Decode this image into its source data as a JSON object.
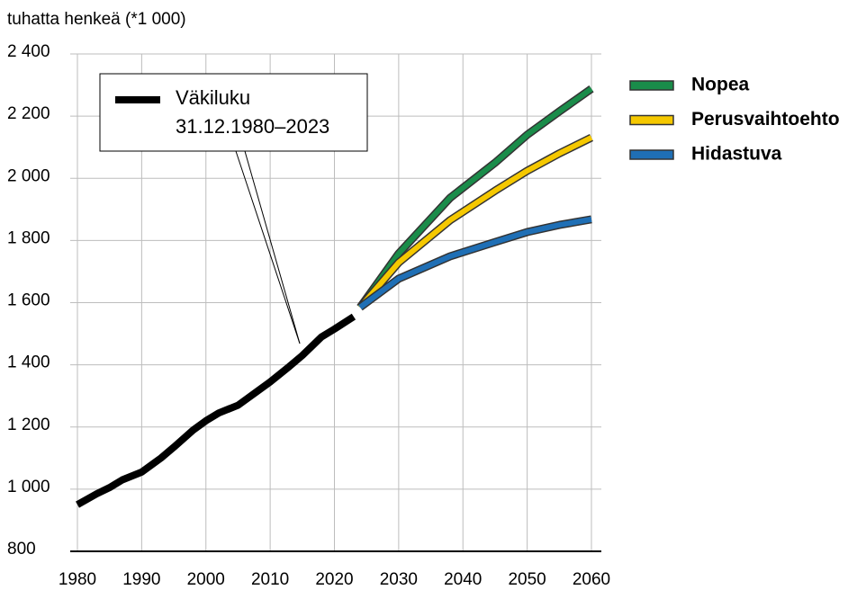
{
  "chart_data": {
    "type": "line",
    "y_label": "tuhatta henkeä (*1 000)",
    "annotation": "31.12.1980–2023",
    "x": [
      1980,
      1983,
      1985,
      1987,
      1990,
      1993,
      1995,
      1998,
      2000,
      2002,
      2005,
      2008,
      2010,
      2013,
      2015,
      2018,
      2020,
      2023,
      2024,
      2030,
      2038,
      2045,
      2050,
      2055,
      2060
    ],
    "series": [
      {
        "name": "Väkiluku",
        "color": "#000000",
        "values": [
          950,
          985,
          1005,
          1030,
          1055,
          1100,
          1135,
          1190,
          1220,
          1245,
          1270,
          1315,
          1345,
          1395,
          1430,
          1490,
          1515,
          1555,
          null,
          null,
          null,
          null,
          null,
          null,
          null
        ]
      },
      {
        "name": "Nopea",
        "color": "#1a8c4a",
        "values": [
          null,
          null,
          null,
          null,
          null,
          null,
          null,
          null,
          null,
          null,
          null,
          null,
          null,
          null,
          null,
          null,
          null,
          null,
          1585,
          1758,
          1937,
          2050,
          2140,
          2215,
          2288
        ]
      },
      {
        "name": "Perusvaihtoehto",
        "color": "#f5c800",
        "values": [
          null,
          null,
          null,
          null,
          null,
          null,
          null,
          null,
          null,
          null,
          null,
          null,
          null,
          null,
          null,
          null,
          null,
          null,
          1585,
          1729,
          1865,
          1960,
          2024,
          2080,
          2131
        ]
      },
      {
        "name": "Hidastuva",
        "color": "#1f6fb5",
        "values": [
          null,
          null,
          null,
          null,
          null,
          null,
          null,
          null,
          null,
          null,
          null,
          null,
          null,
          null,
          null,
          null,
          null,
          null,
          1585,
          1677,
          1749,
          1795,
          1827,
          1850,
          1868
        ]
      }
    ],
    "xlim": [
      1980,
      2060
    ],
    "xticks": [
      1980,
      1990,
      2000,
      2010,
      2020,
      2030,
      2040,
      2050,
      2060
    ],
    "ylim": [
      800,
      2400
    ],
    "yticks": [
      800,
      {
        "value": 1000,
        "label": "1 000"
      },
      {
        "value": 1200,
        "label": "1 200"
      },
      {
        "value": 1400,
        "label": "1 400"
      },
      {
        "value": 1600,
        "label": "1 600"
      },
      {
        "value": 1800,
        "label": "1 800"
      },
      {
        "value": 2000,
        "label": "2 000"
      },
      {
        "value": 2200,
        "label": "2 200"
      },
      {
        "value": 2400,
        "label": "2 400"
      }
    ],
    "grid": true
  }
}
